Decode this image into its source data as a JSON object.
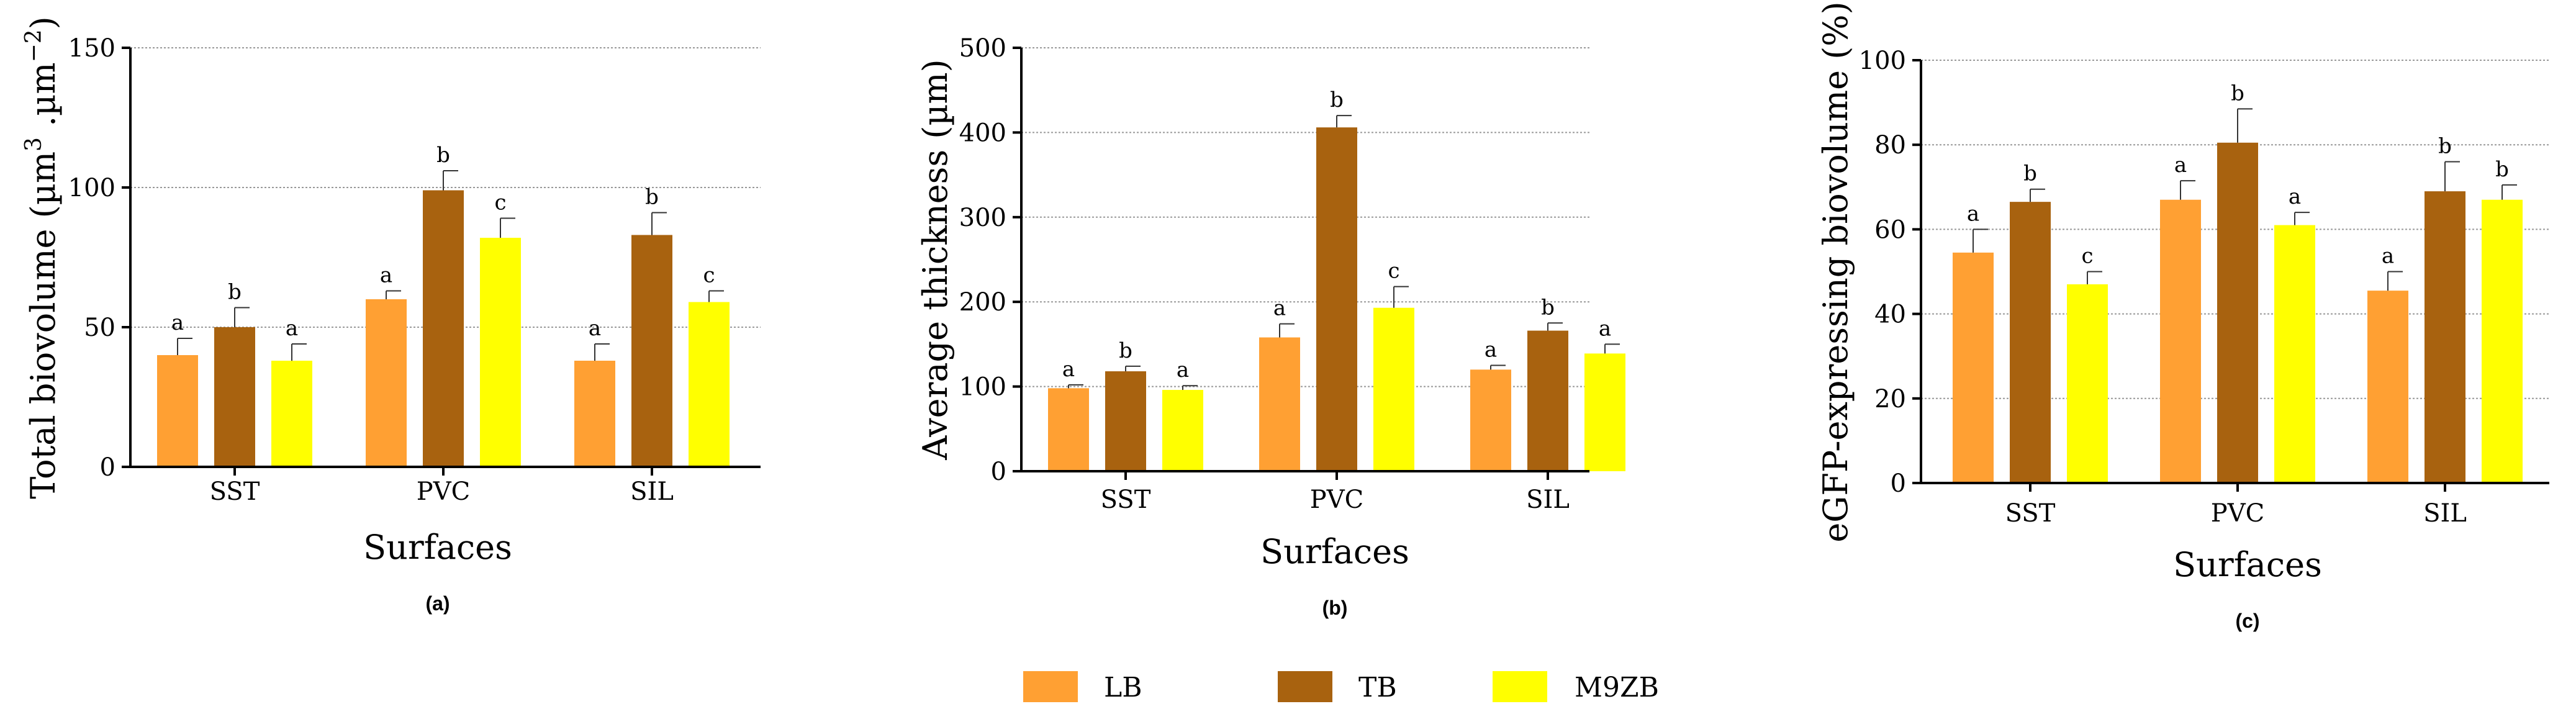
{
  "colors": {
    "LB": "#FFA033",
    "TB": "#A8620F",
    "M9ZB": "#FFFF00",
    "axis": "#000000",
    "grid": "#999999"
  },
  "legend": {
    "items": [
      {
        "key": "LB",
        "label": "LB"
      },
      {
        "key": "TB",
        "label": "TB"
      },
      {
        "key": "M9ZB",
        "label": "M9ZB"
      }
    ]
  },
  "chart_data": [
    {
      "type": "bar",
      "panel_label": "(a)",
      "title": "",
      "ylabel_prefix": "Total biovolume (µm",
      "ylabel_sup1": "3",
      "ylabel_mid": " .µm",
      "ylabel_sup2": "−2",
      "ylabel_suffix": ")",
      "xlabel": "Surfaces",
      "categories": [
        "SST",
        "PVC",
        "SIL"
      ],
      "ylim": [
        0,
        150
      ],
      "yticks": [
        0,
        50,
        100,
        150
      ],
      "series": [
        {
          "name": "LB",
          "values": [
            40,
            60,
            38
          ],
          "errors": [
            6,
            3,
            6
          ],
          "letters": [
            "a",
            "a",
            "a"
          ]
        },
        {
          "name": "TB",
          "values": [
            50,
            99,
            83
          ],
          "errors": [
            7,
            7,
            8
          ],
          "letters": [
            "b",
            "b",
            "b"
          ]
        },
        {
          "name": "M9ZB",
          "values": [
            38,
            82,
            59
          ],
          "errors": [
            6,
            7,
            4
          ],
          "letters": [
            "a",
            "c",
            "c"
          ]
        }
      ]
    },
    {
      "type": "bar",
      "panel_label": "(b)",
      "title": "",
      "ylabel_prefix": "Average thickness (µm)",
      "xlabel": "Surfaces",
      "categories": [
        "SST",
        "PVC",
        "SIL"
      ],
      "ylim": [
        0,
        500
      ],
      "yticks": [
        0,
        100,
        200,
        300,
        400,
        500
      ],
      "series": [
        {
          "name": "LB",
          "values": [
            98,
            158,
            120
          ],
          "errors": [
            4,
            16,
            5
          ],
          "letters": [
            "a",
            "a",
            "a"
          ]
        },
        {
          "name": "TB",
          "values": [
            118,
            406,
            166
          ],
          "errors": [
            6,
            14,
            9
          ],
          "letters": [
            "b",
            "b",
            "b"
          ]
        },
        {
          "name": "M9ZB",
          "values": [
            96,
            193,
            139
          ],
          "errors": [
            5,
            25,
            11
          ],
          "letters": [
            "a",
            "c",
            "a"
          ]
        }
      ]
    },
    {
      "type": "bar",
      "panel_label": "(c)",
      "title": "",
      "ylabel_prefix": "eGFP-expressing biovolume (%)",
      "xlabel": "Surfaces",
      "categories": [
        "SST",
        "PVC",
        "SIL"
      ],
      "ylim": [
        0,
        100
      ],
      "yticks": [
        0,
        20,
        40,
        60,
        80,
        100
      ],
      "series": [
        {
          "name": "LB",
          "values": [
            54.5,
            67,
            45.5
          ],
          "errors": [
            5.5,
            4.5,
            4.5
          ],
          "letters": [
            "a",
            "a",
            "a"
          ]
        },
        {
          "name": "TB",
          "values": [
            66.5,
            80.5,
            69
          ],
          "errors": [
            3,
            8,
            7
          ],
          "letters": [
            "b",
            "b",
            "b"
          ]
        },
        {
          "name": "M9ZB",
          "values": [
            47,
            61,
            67
          ],
          "errors": [
            3,
            3,
            3.5
          ],
          "letters": [
            "c",
            "a",
            "b"
          ]
        }
      ]
    }
  ]
}
